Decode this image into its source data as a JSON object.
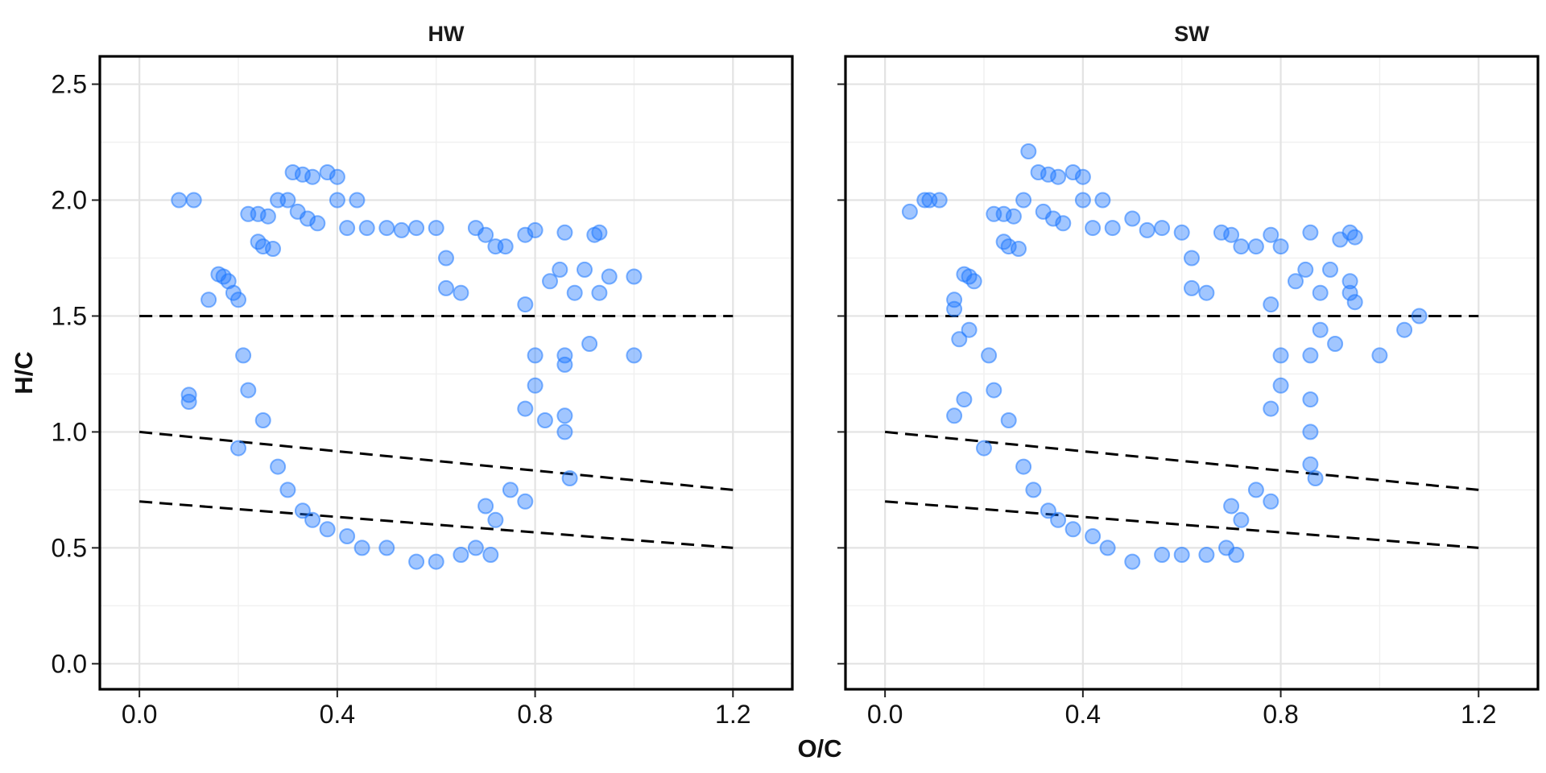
{
  "chart_data": {
    "type": "scatter",
    "xlabel": "O/C",
    "ylabel": "H/C",
    "xlim": [
      -0.08,
      1.32
    ],
    "ylim": [
      -0.11,
      2.62
    ],
    "x_ticks": [
      0.0,
      0.4,
      0.8,
      1.2
    ],
    "x_tick_labels": [
      "0.0",
      "0.4",
      "0.8",
      "1.2"
    ],
    "y_ticks": [
      0.0,
      0.5,
      1.0,
      1.5,
      2.0,
      2.5
    ],
    "y_tick_labels": [
      "0.0",
      "0.5",
      "1.0",
      "1.5",
      "2.0",
      "2.5"
    ],
    "grid": true,
    "point_color": "#1e78ff",
    "reference_lines": [
      {
        "x": [
          0.0,
          1.2
        ],
        "y": [
          1.5,
          1.5
        ]
      },
      {
        "x": [
          0.0,
          1.2
        ],
        "y": [
          1.0,
          0.75
        ]
      },
      {
        "x": [
          0.0,
          1.2
        ],
        "y": [
          0.7,
          0.5
        ]
      }
    ],
    "panels": [
      {
        "title": "HW",
        "points": [
          [
            0.08,
            2.0
          ],
          [
            0.11,
            2.0
          ],
          [
            0.14,
            1.57
          ],
          [
            0.16,
            1.68
          ],
          [
            0.17,
            1.67
          ],
          [
            0.18,
            1.65
          ],
          [
            0.19,
            1.6
          ],
          [
            0.2,
            1.57
          ],
          [
            0.2,
            0.93
          ],
          [
            0.1,
            1.16
          ],
          [
            0.1,
            1.13
          ],
          [
            0.22,
            1.94
          ],
          [
            0.24,
            1.94
          ],
          [
            0.26,
            1.93
          ],
          [
            0.28,
            2.0
          ],
          [
            0.3,
            2.0
          ],
          [
            0.31,
            2.12
          ],
          [
            0.33,
            2.11
          ],
          [
            0.35,
            2.1
          ],
          [
            0.38,
            2.12
          ],
          [
            0.4,
            2.1
          ],
          [
            0.4,
            2.0
          ],
          [
            0.44,
            2.0
          ],
          [
            0.32,
            1.95
          ],
          [
            0.34,
            1.92
          ],
          [
            0.36,
            1.9
          ],
          [
            0.24,
            1.82
          ],
          [
            0.25,
            1.8
          ],
          [
            0.27,
            1.79
          ],
          [
            0.42,
            1.88
          ],
          [
            0.46,
            1.88
          ],
          [
            0.5,
            1.88
          ],
          [
            0.53,
            1.87
          ],
          [
            0.56,
            1.88
          ],
          [
            0.6,
            1.88
          ],
          [
            0.62,
            1.75
          ],
          [
            0.62,
            1.62
          ],
          [
            0.65,
            1.6
          ],
          [
            0.68,
            1.88
          ],
          [
            0.7,
            1.85
          ],
          [
            0.72,
            1.8
          ],
          [
            0.74,
            1.8
          ],
          [
            0.78,
            1.85
          ],
          [
            0.8,
            1.87
          ],
          [
            0.86,
            1.86
          ],
          [
            0.92,
            1.85
          ],
          [
            0.93,
            1.86
          ],
          [
            0.9,
            1.7
          ],
          [
            0.95,
            1.67
          ],
          [
            1.0,
            1.67
          ],
          [
            0.93,
            1.6
          ],
          [
            0.85,
            1.7
          ],
          [
            0.83,
            1.65
          ],
          [
            0.88,
            1.6
          ],
          [
            0.78,
            1.55
          ],
          [
            0.91,
            1.38
          ],
          [
            0.86,
            1.33
          ],
          [
            0.86,
            1.29
          ],
          [
            1.0,
            1.33
          ],
          [
            0.8,
            1.33
          ],
          [
            0.8,
            1.2
          ],
          [
            0.78,
            1.1
          ],
          [
            0.82,
            1.05
          ],
          [
            0.86,
            1.07
          ],
          [
            0.86,
            1.0
          ],
          [
            0.87,
            0.8
          ],
          [
            0.75,
            0.75
          ],
          [
            0.78,
            0.7
          ],
          [
            0.7,
            0.68
          ],
          [
            0.72,
            0.62
          ],
          [
            0.68,
            0.5
          ],
          [
            0.71,
            0.47
          ],
          [
            0.65,
            0.47
          ],
          [
            0.6,
            0.44
          ],
          [
            0.56,
            0.44
          ],
          [
            0.5,
            0.5
          ],
          [
            0.45,
            0.5
          ],
          [
            0.42,
            0.55
          ],
          [
            0.38,
            0.58
          ],
          [
            0.35,
            0.62
          ],
          [
            0.33,
            0.66
          ],
          [
            0.3,
            0.75
          ],
          [
            0.28,
            0.85
          ],
          [
            0.25,
            1.05
          ],
          [
            0.22,
            1.18
          ],
          [
            0.21,
            1.33
          ]
        ]
      },
      {
        "title": "SW",
        "points": [
          [
            0.05,
            1.95
          ],
          [
            0.08,
            2.0
          ],
          [
            0.09,
            2.0
          ],
          [
            0.11,
            2.0
          ],
          [
            0.14,
            1.57
          ],
          [
            0.14,
            1.53
          ],
          [
            0.16,
            1.68
          ],
          [
            0.17,
            1.67
          ],
          [
            0.18,
            1.65
          ],
          [
            0.17,
            1.44
          ],
          [
            0.15,
            1.4
          ],
          [
            0.16,
            1.14
          ],
          [
            0.14,
            1.07
          ],
          [
            0.2,
            0.93
          ],
          [
            0.22,
            1.94
          ],
          [
            0.24,
            1.94
          ],
          [
            0.26,
            1.93
          ],
          [
            0.28,
            2.0
          ],
          [
            0.29,
            2.21
          ],
          [
            0.31,
            2.12
          ],
          [
            0.33,
            2.11
          ],
          [
            0.35,
            2.1
          ],
          [
            0.38,
            2.12
          ],
          [
            0.4,
            2.1
          ],
          [
            0.44,
            2.0
          ],
          [
            0.4,
            2.0
          ],
          [
            0.32,
            1.95
          ],
          [
            0.34,
            1.92
          ],
          [
            0.36,
            1.9
          ],
          [
            0.24,
            1.82
          ],
          [
            0.25,
            1.8
          ],
          [
            0.27,
            1.79
          ],
          [
            0.42,
            1.88
          ],
          [
            0.46,
            1.88
          ],
          [
            0.5,
            1.92
          ],
          [
            0.53,
            1.87
          ],
          [
            0.56,
            1.88
          ],
          [
            0.6,
            1.86
          ],
          [
            0.62,
            1.75
          ],
          [
            0.62,
            1.62
          ],
          [
            0.65,
            1.6
          ],
          [
            0.68,
            1.86
          ],
          [
            0.7,
            1.85
          ],
          [
            0.72,
            1.8
          ],
          [
            0.75,
            1.8
          ],
          [
            0.78,
            1.85
          ],
          [
            0.8,
            1.8
          ],
          [
            0.86,
            1.86
          ],
          [
            0.92,
            1.83
          ],
          [
            0.94,
            1.86
          ],
          [
            0.95,
            1.84
          ],
          [
            0.9,
            1.7
          ],
          [
            0.94,
            1.6
          ],
          [
            0.94,
            1.65
          ],
          [
            0.95,
            1.56
          ],
          [
            0.85,
            1.7
          ],
          [
            0.83,
            1.65
          ],
          [
            0.88,
            1.6
          ],
          [
            0.78,
            1.55
          ],
          [
            1.08,
            1.5
          ],
          [
            1.05,
            1.44
          ],
          [
            1.0,
            1.33
          ],
          [
            0.91,
            1.38
          ],
          [
            0.88,
            1.44
          ],
          [
            0.86,
            1.33
          ],
          [
            0.8,
            1.33
          ],
          [
            0.8,
            1.2
          ],
          [
            0.78,
            1.1
          ],
          [
            0.86,
            1.14
          ],
          [
            0.86,
            1.0
          ],
          [
            0.86,
            0.86
          ],
          [
            0.87,
            0.8
          ],
          [
            0.75,
            0.75
          ],
          [
            0.78,
            0.7
          ],
          [
            0.7,
            0.68
          ],
          [
            0.72,
            0.62
          ],
          [
            0.69,
            0.5
          ],
          [
            0.71,
            0.47
          ],
          [
            0.65,
            0.47
          ],
          [
            0.6,
            0.47
          ],
          [
            0.56,
            0.47
          ],
          [
            0.5,
            0.44
          ],
          [
            0.45,
            0.5
          ],
          [
            0.42,
            0.55
          ],
          [
            0.38,
            0.58
          ],
          [
            0.35,
            0.62
          ],
          [
            0.33,
            0.66
          ],
          [
            0.3,
            0.75
          ],
          [
            0.28,
            0.85
          ],
          [
            0.25,
            1.05
          ],
          [
            0.22,
            1.18
          ],
          [
            0.21,
            1.33
          ]
        ]
      }
    ]
  }
}
